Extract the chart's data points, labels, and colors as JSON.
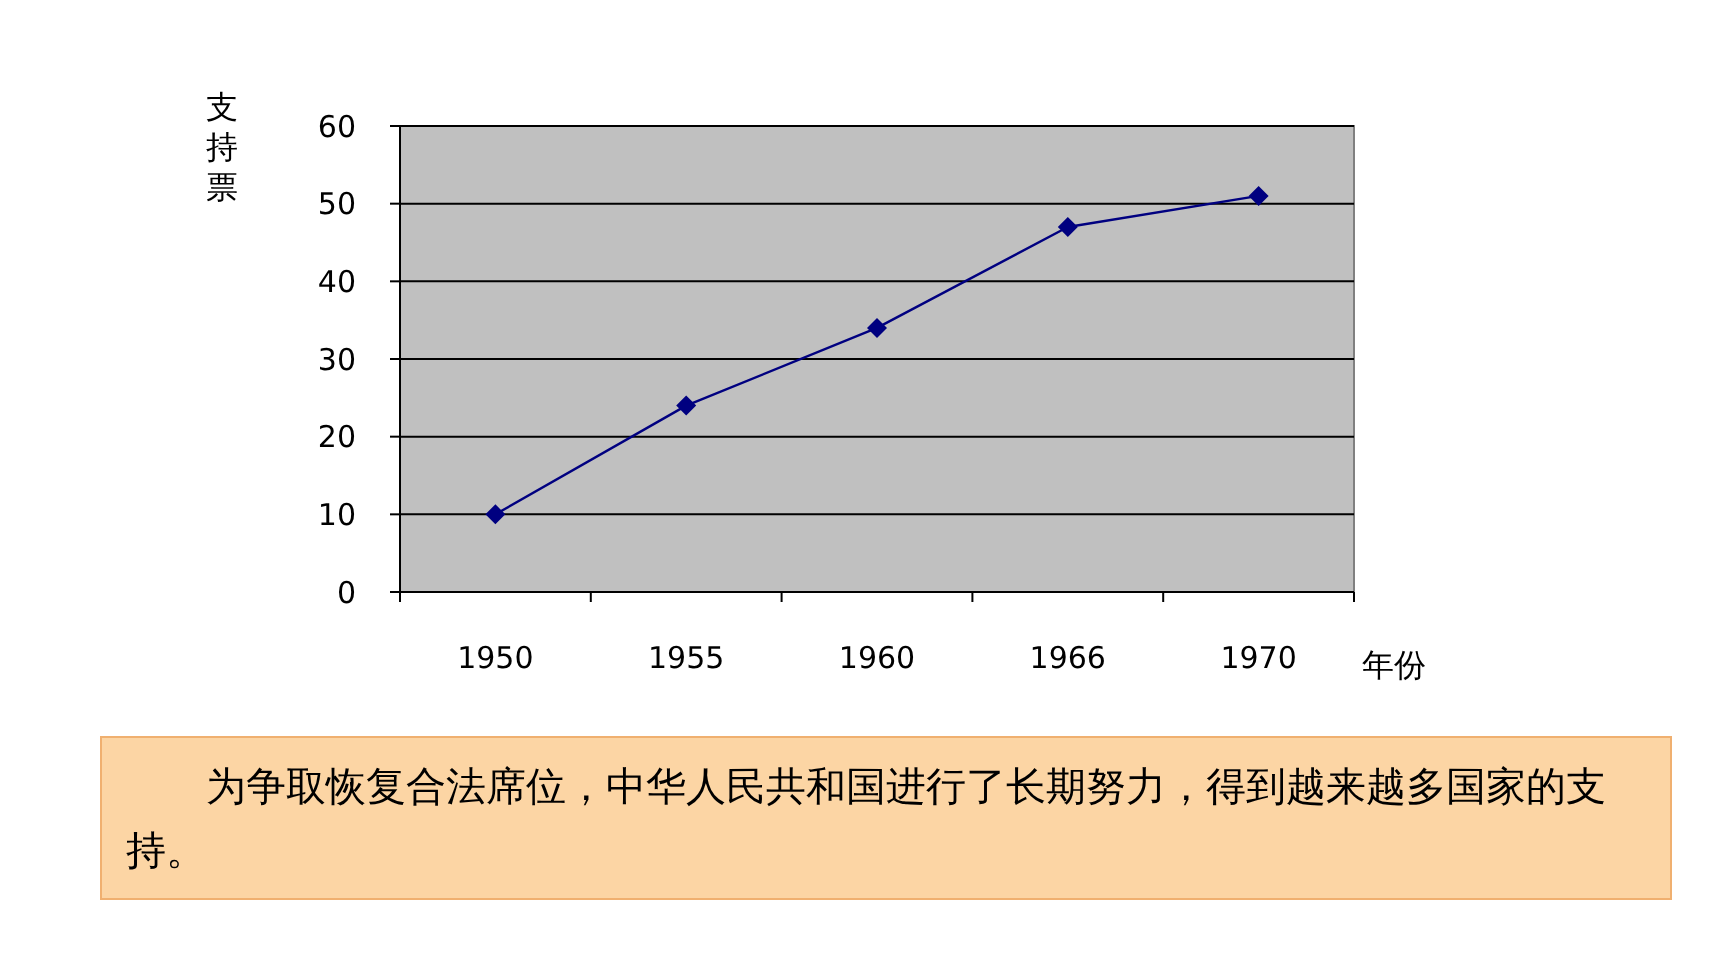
{
  "chart_data": {
    "type": "line",
    "ylabel": "支持票",
    "xlabel": "年份",
    "categories": [
      "1950",
      "1955",
      "1960",
      "1966",
      "1970"
    ],
    "series": [
      {
        "color": "#000080",
        "values": [
          10,
          24,
          34,
          47,
          51
        ]
      }
    ],
    "ylim": [
      0,
      60
    ],
    "yticks": [
      0,
      10,
      20,
      30,
      40,
      50,
      60
    ],
    "grid": "y",
    "marker": "diamond",
    "line_style": "solid",
    "annotations": [
      "为争取恢复合法席位，中华人民共和国进行了长期努力，得到越来越多国家的支持。"
    ]
  }
}
